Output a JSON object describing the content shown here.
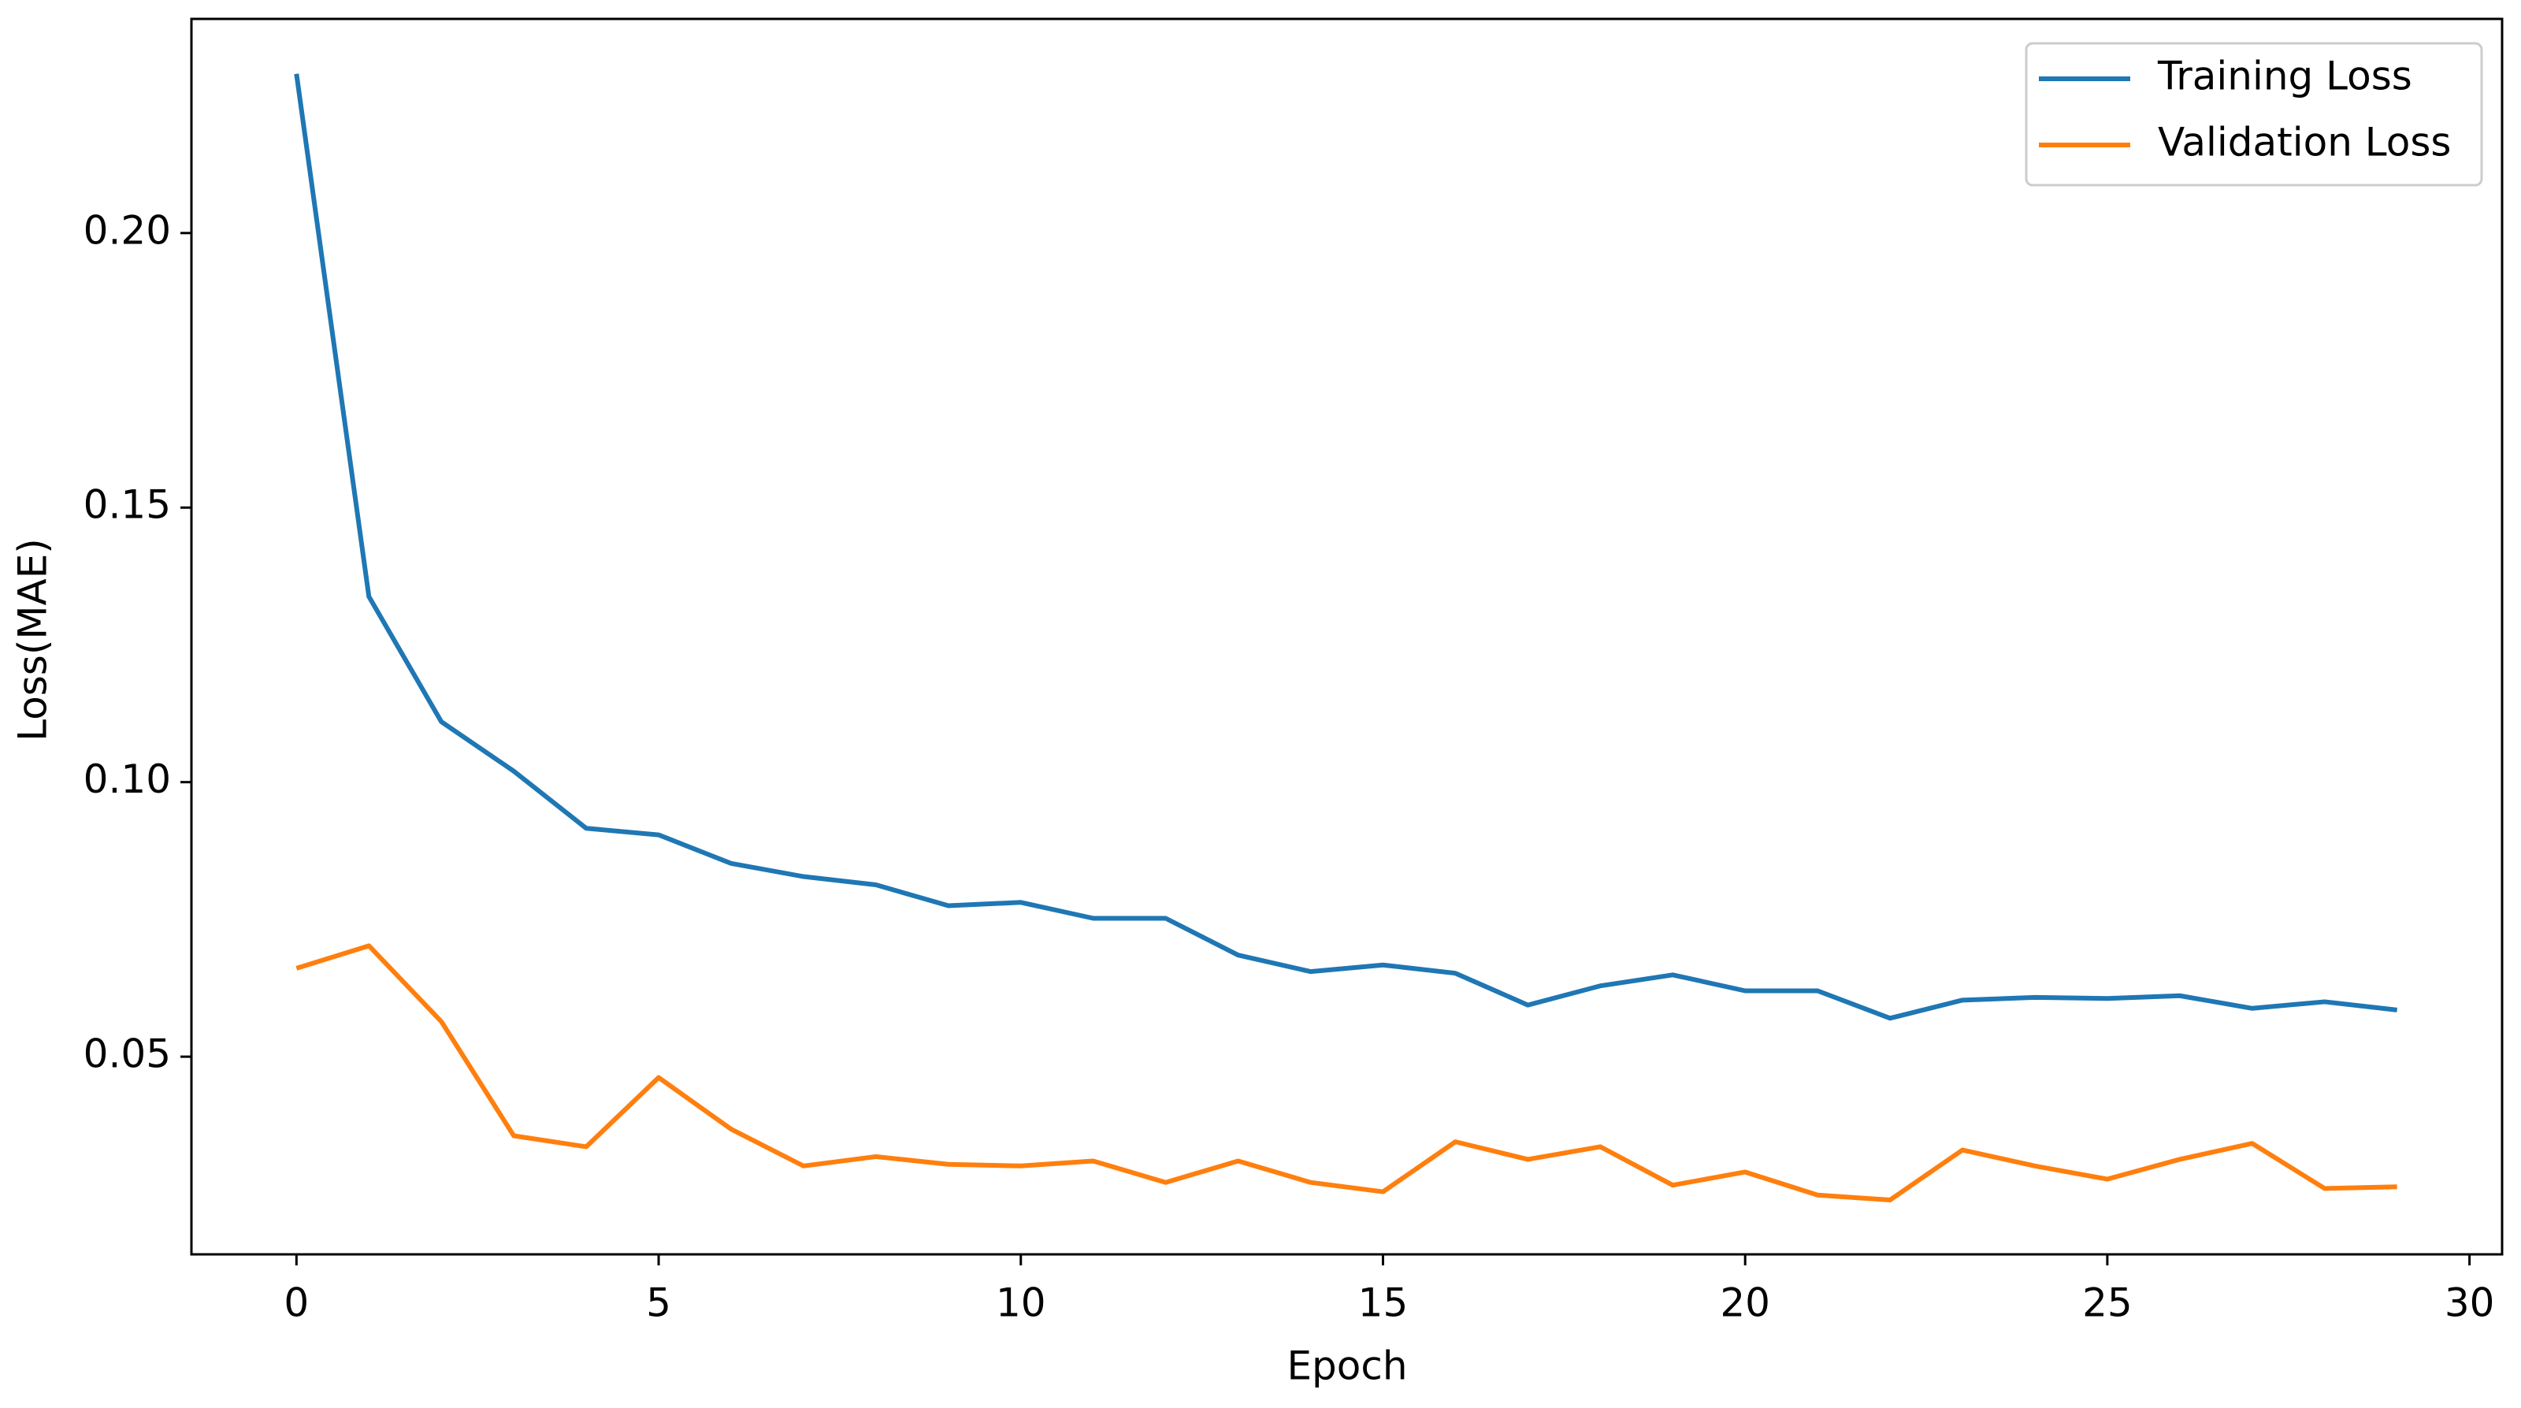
{
  "chart_data": {
    "type": "line",
    "x_label": "Epoch",
    "y_label": "Loss(MAE)",
    "x": [
      0,
      1,
      2,
      3,
      4,
      5,
      6,
      7,
      8,
      9,
      10,
      11,
      12,
      13,
      14,
      15,
      16,
      17,
      18,
      19,
      20,
      21,
      22,
      23,
      24,
      25,
      26,
      27,
      28,
      29
    ],
    "series": [
      {
        "name": "Training Loss",
        "color": "#1f77b4",
        "values": [
          0.229,
          0.1338,
          0.111,
          0.102,
          0.0916,
          0.0904,
          0.0852,
          0.0828,
          0.0813,
          0.0775,
          0.0781,
          0.0752,
          0.0752,
          0.0685,
          0.0655,
          0.0667,
          0.0652,
          0.0594,
          0.0629,
          0.0649,
          0.062,
          0.062,
          0.057,
          0.0603,
          0.0608,
          0.0606,
          0.0611,
          0.0588,
          0.06,
          0.0585
        ]
      },
      {
        "name": "Validation Loss",
        "color": "#ff7f0e",
        "values": [
          0.0661,
          0.0702,
          0.0564,
          0.0356,
          0.0336,
          0.0462,
          0.0368,
          0.0301,
          0.0318,
          0.0304,
          0.0301,
          0.031,
          0.0271,
          0.031,
          0.0271,
          0.0254,
          0.0345,
          0.0313,
          0.0336,
          0.0266,
          0.029,
          0.0248,
          0.0239,
          0.033,
          0.0301,
          0.0277,
          0.0313,
          0.0342,
          0.026,
          0.0263
        ]
      }
    ],
    "xlim": [
      -1.45,
      30.45
    ],
    "xticks": [
      0,
      5,
      10,
      15,
      20,
      25,
      30
    ],
    "ylim": [
      0.014,
      0.239
    ],
    "yticks": [
      0.05,
      {
        "value": 0.1,
        "label": "0.10"
      },
      0.15,
      {
        "value": 0.2,
        "label": "0.20"
      }
    ],
    "grid": false,
    "legend": "upper right"
  }
}
